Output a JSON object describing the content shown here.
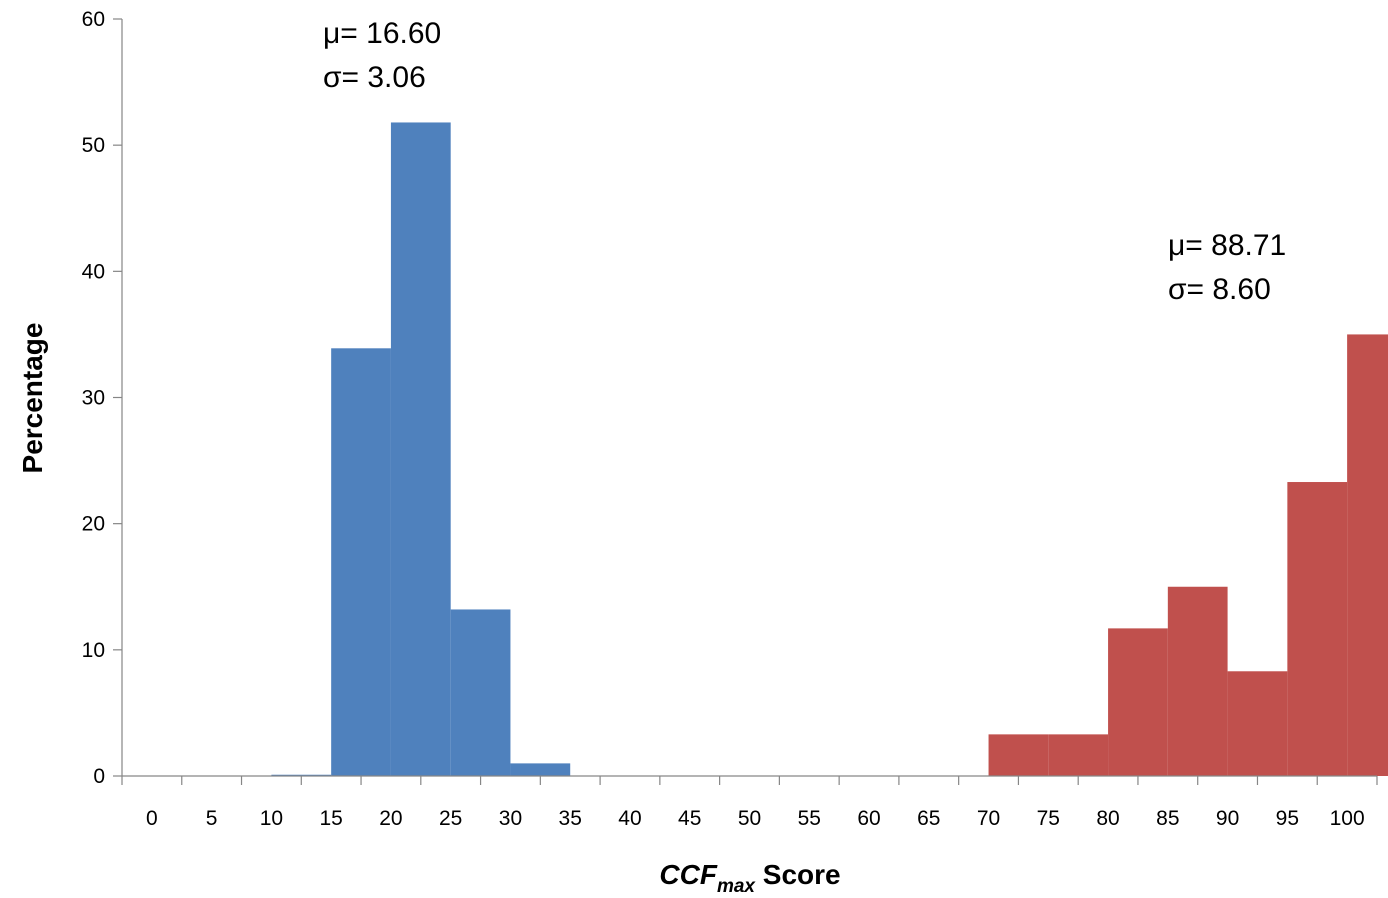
{
  "chart_data": {
    "type": "bar",
    "title": "",
    "xlabel": {
      "main": "CCF",
      "subscript": "max",
      "suffix": " Score"
    },
    "ylabel": "Percentage",
    "ylim": [
      0,
      60
    ],
    "yticks": [
      0,
      10,
      20,
      30,
      40,
      50,
      60
    ],
    "categories": [
      "0",
      "5",
      "10",
      "15",
      "20",
      "25",
      "30",
      "35",
      "40",
      "45",
      "50",
      "55",
      "60",
      "65",
      "70",
      "75",
      "80",
      "85",
      "90",
      "95",
      "100"
    ],
    "series": [
      {
        "color": "#4f81bd",
        "values": [
          0,
          0,
          0.1,
          33.9,
          51.8,
          13.2,
          1.0,
          0,
          0,
          0,
          0,
          0,
          0,
          0,
          0,
          0,
          0,
          0,
          0,
          0,
          0
        ]
      },
      {
        "color": "#c0504d",
        "values": [
          0,
          0,
          0,
          0,
          0,
          0,
          0,
          0,
          0,
          0,
          0,
          0,
          0,
          0,
          3.3,
          3.3,
          11.7,
          15.0,
          8.3,
          23.3,
          35.0
        ]
      }
    ],
    "annotations": [
      {
        "line1": "μ= 16.60",
        "line2": "σ= 3.06"
      },
      {
        "line1": "μ= 88.71",
        "line2": "σ= 8.60"
      }
    ],
    "grid": false,
    "legend": "none"
  }
}
